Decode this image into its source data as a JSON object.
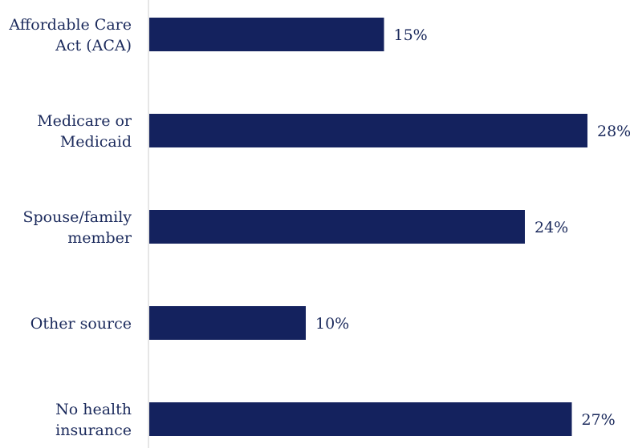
{
  "chart_data": {
    "type": "bar",
    "orientation": "horizontal",
    "categories": [
      [
        "Affordable Care",
        "Act (ACA)"
      ],
      [
        "Medicare or",
        "Medicaid"
      ],
      [
        "Spouse/family",
        "member"
      ],
      [
        "Other source"
      ],
      [
        "No health",
        "insurance"
      ]
    ],
    "values": [
      15,
      28,
      24,
      10,
      27
    ],
    "value_labels": [
      "15%",
      "28%",
      "24%",
      "10%",
      "27%"
    ],
    "xlim": [
      0,
      28
    ],
    "grid": false,
    "legend": "none",
    "colors": {
      "bar": "#14225e",
      "text": "#1b2a5c",
      "axis": "#cccccc"
    }
  }
}
